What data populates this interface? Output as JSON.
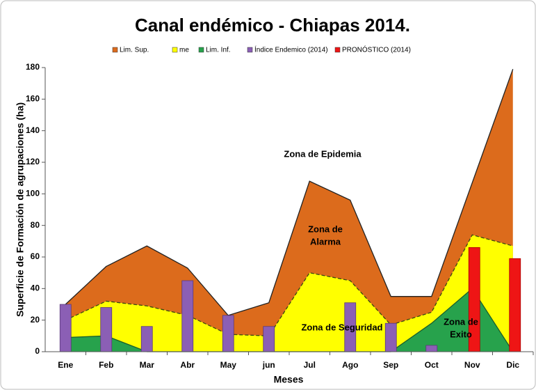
{
  "chart_data": {
    "type": "area",
    "title": "Canal endémico - Chiapas 2014.",
    "y_label": "Superficie de Formación de agrupaciones (ha)",
    "x_label": "Meses",
    "categories": [
      "Ene",
      "Feb",
      "Mar",
      "Abr",
      "May",
      "jun",
      "Jul",
      "Ago",
      "Sep",
      "Oct",
      "Nov",
      "Dic"
    ],
    "series": [
      {
        "name": "Lim. Sup.",
        "type": "area",
        "color": "#dc6b1c",
        "values": [
          30,
          54,
          67,
          53,
          23,
          31,
          108,
          96,
          35,
          35,
          107,
          179
        ]
      },
      {
        "name": "me",
        "type": "area",
        "color": "#ffff00",
        "values": [
          20,
          32,
          29,
          23,
          11,
          10,
          50,
          45,
          17,
          25,
          74,
          67
        ]
      },
      {
        "name": "Lim. Inf.",
        "type": "area",
        "color": "#27a24c",
        "values": [
          9,
          10,
          0,
          0,
          0,
          0,
          0,
          0,
          0,
          18,
          40,
          0
        ]
      },
      {
        "name": "Índice Endemico (2014)",
        "type": "bar",
        "color": "#8b5fb5",
        "values": [
          30,
          28,
          16,
          45,
          23,
          16,
          null,
          31,
          18,
          4,
          null,
          null
        ]
      },
      {
        "name": "PRONÓSTICO (2014)",
        "type": "bar",
        "color": "#ee1515",
        "values": [
          null,
          null,
          null,
          null,
          null,
          null,
          null,
          null,
          null,
          null,
          66,
          59
        ]
      }
    ],
    "annotations": [
      [
        "Zona de Epidemia"
      ],
      [
        "Zona de",
        "Alarma"
      ],
      [
        "Zona de Seguridad"
      ],
      [
        "Zona de",
        "Exito"
      ]
    ],
    "ylim": [
      0,
      180
    ],
    "yticks": [
      0,
      20,
      40,
      60,
      80,
      100,
      120,
      140,
      160,
      180
    ],
    "grid": false,
    "legend": "top"
  }
}
